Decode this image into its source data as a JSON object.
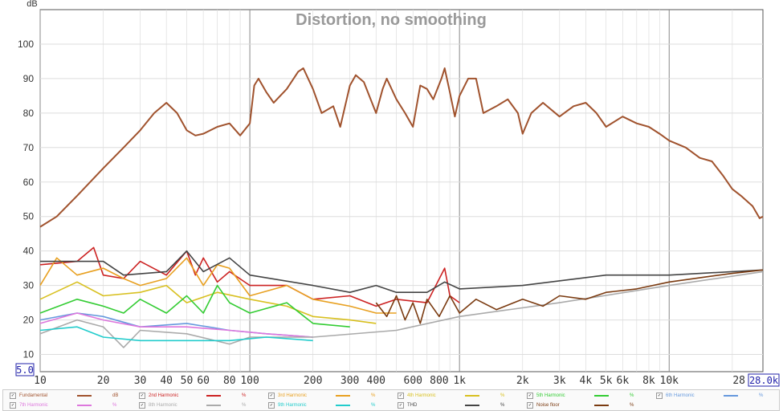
{
  "chart_data": {
    "type": "line",
    "title": "Distortion, no smoothing",
    "ylabel": "dB",
    "xscale": "log",
    "xlim": [
      10,
      28000
    ],
    "ylim": [
      5,
      110
    ],
    "range_boxes": {
      "y_min": "5.0",
      "x_max": "28.0k"
    },
    "xticks": [
      {
        "v": 10,
        "l": "10"
      },
      {
        "v": 20,
        "l": "20"
      },
      {
        "v": 30,
        "l": "30"
      },
      {
        "v": 40,
        "l": "40"
      },
      {
        "v": 50,
        "l": "50"
      },
      {
        "v": 60,
        "l": "60"
      },
      {
        "v": 80,
        "l": "80"
      },
      {
        "v": 100,
        "l": "100"
      },
      {
        "v": 200,
        "l": "200"
      },
      {
        "v": 300,
        "l": "300"
      },
      {
        "v": 400,
        "l": "400"
      },
      {
        "v": 600,
        "l": "600"
      },
      {
        "v": 800,
        "l": "800"
      },
      {
        "v": 1000,
        "l": "1k"
      },
      {
        "v": 2000,
        "l": "2k"
      },
      {
        "v": 3000,
        "l": "3k"
      },
      {
        "v": 4000,
        "l": "4k"
      },
      {
        "v": 5000,
        "l": "5k"
      },
      {
        "v": 6000,
        "l": "6k"
      },
      {
        "v": 8000,
        "l": "8k"
      },
      {
        "v": 10000,
        "l": "10k"
      },
      {
        "v": 28000,
        "l": "28"
      }
    ],
    "yticks": [
      10,
      20,
      30,
      40,
      50,
      60,
      70,
      80,
      90,
      100
    ],
    "grid": true,
    "series": [
      {
        "name": "Fundamental",
        "unit": "dB",
        "color": "#a0522d",
        "points": [
          [
            10,
            47
          ],
          [
            12,
            50
          ],
          [
            15,
            56
          ],
          [
            20,
            64
          ],
          [
            25,
            70
          ],
          [
            30,
            75
          ],
          [
            35,
            80
          ],
          [
            40,
            83
          ],
          [
            45,
            80
          ],
          [
            50,
            75
          ],
          [
            55,
            73.5
          ],
          [
            60,
            74
          ],
          [
            70,
            76
          ],
          [
            80,
            77
          ],
          [
            90,
            73.5
          ],
          [
            100,
            77
          ],
          [
            105,
            88
          ],
          [
            110,
            90
          ],
          [
            120,
            86
          ],
          [
            130,
            83
          ],
          [
            150,
            87
          ],
          [
            170,
            92
          ],
          [
            180,
            93
          ],
          [
            200,
            87
          ],
          [
            220,
            80
          ],
          [
            250,
            82
          ],
          [
            270,
            76
          ],
          [
            300,
            88
          ],
          [
            320,
            91
          ],
          [
            350,
            89
          ],
          [
            400,
            80
          ],
          [
            430,
            87
          ],
          [
            450,
            90
          ],
          [
            500,
            84
          ],
          [
            550,
            80
          ],
          [
            600,
            76
          ],
          [
            650,
            88
          ],
          [
            700,
            87
          ],
          [
            750,
            84
          ],
          [
            820,
            90
          ],
          [
            850,
            93
          ],
          [
            900,
            86
          ],
          [
            950,
            79
          ],
          [
            1000,
            85
          ],
          [
            1100,
            90
          ],
          [
            1200,
            90
          ],
          [
            1300,
            80
          ],
          [
            1500,
            82
          ],
          [
            1700,
            84
          ],
          [
            1900,
            80
          ],
          [
            2000,
            74
          ],
          [
            2200,
            80
          ],
          [
            2500,
            83
          ],
          [
            3000,
            79
          ],
          [
            3500,
            82
          ],
          [
            4000,
            83
          ],
          [
            4500,
            80
          ],
          [
            5000,
            76
          ],
          [
            6000,
            79
          ],
          [
            7000,
            77
          ],
          [
            8000,
            76
          ],
          [
            9000,
            74
          ],
          [
            10000,
            72
          ],
          [
            12000,
            70
          ],
          [
            14000,
            67
          ],
          [
            16000,
            66
          ],
          [
            18000,
            62
          ],
          [
            20000,
            58
          ],
          [
            22000,
            56
          ],
          [
            25000,
            53
          ],
          [
            27000,
            49.5
          ],
          [
            28000,
            50
          ]
        ]
      },
      {
        "name": "2nd Harmonic",
        "unit": "%",
        "color": "#cc2222",
        "points": [
          [
            10,
            36
          ],
          [
            15,
            37
          ],
          [
            18,
            41
          ],
          [
            20,
            33
          ],
          [
            25,
            32
          ],
          [
            30,
            37
          ],
          [
            40,
            33
          ],
          [
            50,
            40
          ],
          [
            55,
            33
          ],
          [
            60,
            38
          ],
          [
            70,
            31
          ],
          [
            80,
            34
          ],
          [
            100,
            30
          ],
          [
            150,
            30
          ],
          [
            200,
            26
          ],
          [
            300,
            27
          ],
          [
            400,
            24
          ],
          [
            500,
            26
          ],
          [
            700,
            25
          ],
          [
            850,
            35
          ],
          [
            900,
            27
          ],
          [
            1000,
            25
          ]
        ]
      },
      {
        "name": "3rd Harmonic",
        "unit": "%",
        "color": "#e8a020",
        "points": [
          [
            10,
            30
          ],
          [
            12,
            38
          ],
          [
            15,
            33
          ],
          [
            20,
            35
          ],
          [
            25,
            32
          ],
          [
            30,
            30
          ],
          [
            40,
            32
          ],
          [
            50,
            38
          ],
          [
            60,
            30
          ],
          [
            70,
            36
          ],
          [
            80,
            35
          ],
          [
            100,
            27
          ],
          [
            150,
            30
          ],
          [
            200,
            26
          ],
          [
            300,
            24
          ],
          [
            400,
            22
          ],
          [
            500,
            22
          ]
        ]
      },
      {
        "name": "4th Harmonic",
        "unit": "%",
        "color": "#d8c020",
        "points": [
          [
            10,
            26
          ],
          [
            15,
            31
          ],
          [
            20,
            27
          ],
          [
            30,
            28
          ],
          [
            40,
            30
          ],
          [
            50,
            25
          ],
          [
            70,
            28
          ],
          [
            100,
            26
          ],
          [
            150,
            24
          ],
          [
            200,
            21
          ],
          [
            300,
            20
          ],
          [
            400,
            19
          ]
        ]
      },
      {
        "name": "5th Harmonic",
        "unit": "%",
        "color": "#33cc33",
        "points": [
          [
            10,
            22
          ],
          [
            15,
            26
          ],
          [
            20,
            24
          ],
          [
            25,
            22
          ],
          [
            30,
            26
          ],
          [
            40,
            22
          ],
          [
            50,
            27
          ],
          [
            60,
            22
          ],
          [
            70,
            30
          ],
          [
            80,
            25
          ],
          [
            100,
            22
          ],
          [
            150,
            25
          ],
          [
            200,
            19
          ],
          [
            300,
            18
          ]
        ]
      },
      {
        "name": "6th Harmonic",
        "unit": "%",
        "color": "#6699dd",
        "points": [
          [
            10,
            20
          ],
          [
            15,
            22
          ],
          [
            20,
            21
          ],
          [
            30,
            18
          ],
          [
            50,
            19
          ],
          [
            80,
            17
          ],
          [
            120,
            16
          ],
          [
            200,
            15
          ]
        ]
      },
      {
        "name": "7th Harmonic",
        "unit": "%",
        "color": "#dd77dd",
        "points": [
          [
            10,
            19
          ],
          [
            15,
            22
          ],
          [
            20,
            20
          ],
          [
            30,
            18
          ],
          [
            50,
            18
          ],
          [
            80,
            17
          ],
          [
            120,
            16
          ],
          [
            200,
            15
          ]
        ]
      },
      {
        "name": "8th Harmonic",
        "unit": "%",
        "color": "#aaaaaa",
        "points": [
          [
            10,
            16
          ],
          [
            15,
            20
          ],
          [
            20,
            18
          ],
          [
            25,
            12
          ],
          [
            30,
            17
          ],
          [
            50,
            16
          ],
          [
            80,
            13
          ],
          [
            100,
            15
          ],
          [
            200,
            15
          ],
          [
            500,
            17
          ],
          [
            1000,
            21
          ],
          [
            3000,
            25
          ],
          [
            10000,
            30
          ],
          [
            28000,
            34
          ]
        ]
      },
      {
        "name": "9th Harmonic",
        "unit": "%",
        "color": "#22cccc",
        "points": [
          [
            10,
            17
          ],
          [
            15,
            18
          ],
          [
            20,
            15
          ],
          [
            30,
            14
          ],
          [
            50,
            14
          ],
          [
            80,
            14
          ],
          [
            120,
            15
          ],
          [
            200,
            14
          ]
        ]
      },
      {
        "name": "THD",
        "unit": "%",
        "color": "#444444",
        "points": [
          [
            10,
            37
          ],
          [
            20,
            37
          ],
          [
            25,
            33
          ],
          [
            40,
            34
          ],
          [
            50,
            40
          ],
          [
            60,
            34
          ],
          [
            80,
            38
          ],
          [
            100,
            33
          ],
          [
            200,
            30
          ],
          [
            300,
            28
          ],
          [
            400,
            30
          ],
          [
            500,
            28
          ],
          [
            700,
            28
          ],
          [
            850,
            31
          ],
          [
            1000,
            29
          ],
          [
            2000,
            30
          ],
          [
            5000,
            33
          ],
          [
            10000,
            33
          ],
          [
            20000,
            34
          ],
          [
            28000,
            34.5
          ]
        ]
      },
      {
        "name": "Noise floor",
        "unit": "%",
        "color": "#7a3a10",
        "points": [
          [
            400,
            25
          ],
          [
            450,
            21
          ],
          [
            500,
            27
          ],
          [
            550,
            20
          ],
          [
            600,
            25
          ],
          [
            650,
            19
          ],
          [
            700,
            26
          ],
          [
            800,
            21
          ],
          [
            900,
            27
          ],
          [
            1000,
            22
          ],
          [
            1200,
            26
          ],
          [
            1500,
            23
          ],
          [
            2000,
            26
          ],
          [
            2500,
            24
          ],
          [
            3000,
            27
          ],
          [
            4000,
            26
          ],
          [
            5000,
            28
          ],
          [
            7000,
            29
          ],
          [
            10000,
            31
          ],
          [
            15000,
            32.5
          ],
          [
            20000,
            33.5
          ],
          [
            28000,
            34.5
          ]
        ]
      }
    ]
  },
  "legend": {
    "rows": [
      [
        "Fundamental",
        "2nd Harmonic",
        "3rd Harmonic",
        "4th Harmonic",
        "5th Harmonic",
        "6th Harmonic"
      ],
      [
        "7th Harmonic",
        "8th Harmonic",
        "9th Harmonic",
        "THD",
        "Noise floor"
      ]
    ]
  }
}
